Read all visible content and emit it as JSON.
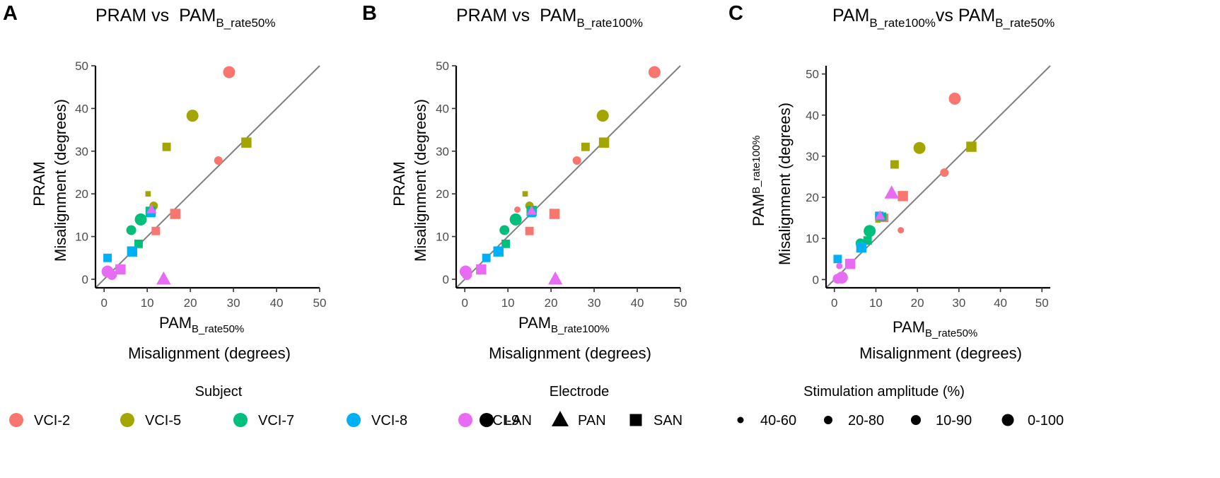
{
  "colors": {
    "VCI-2": "#F8766D",
    "VCI-5": "#A3A500",
    "VCI-7": "#00BF7D",
    "VCI-8": "#00B0F6",
    "VCI-9": "#E76BF3",
    "identity_line": "#808080"
  },
  "panels": [
    {
      "label": "A",
      "title_main": "PRAM vs  PAM",
      "title_sub": "B_rate50%"
    },
    {
      "label": "B",
      "title_main": "PRAM vs  PAM",
      "title_sub": "B_rate100%"
    },
    {
      "label": "C",
      "title_main": "PAM",
      "title_sub": "B_rate100%",
      "title_main2": "vs PAM",
      "title_sub2": "B_rate50%"
    }
  ],
  "legend": {
    "subject_title": "Subject",
    "electrode_title": "Electrode",
    "amplitude_title": "Stimulation amplitude (%)",
    "subjects": [
      "VCI-2",
      "VCI-5",
      "VCI-7",
      "VCI-8",
      "VCI-9"
    ],
    "electrodes": [
      "LAN",
      "PAN",
      "SAN"
    ],
    "amplitudes": [
      "40-60",
      "20-80",
      "10-90",
      "0-100"
    ]
  },
  "chart_data": [
    {
      "type": "scatter",
      "title": "PRAM vs  PAMB_rate50%",
      "xlabel_main": "PAM",
      "xlabel_sub": "B_rate50%",
      "xlabel_line2": "Misalignment (degrees)",
      "ylabel_main": "PRAM",
      "ylabel_line2": "Misalignment (degrees)",
      "xlim": [
        -2,
        50
      ],
      "ylim": [
        -2,
        50
      ],
      "xticks": [
        0,
        10,
        20,
        30,
        40,
        50
      ],
      "yticks": [
        0,
        10,
        20,
        30,
        40,
        50
      ],
      "identity_line": true,
      "grid": false,
      "points": [
        {
          "x": 29,
          "y": 48.5,
          "subject": "VCI-2",
          "electrode": "LAN",
          "amp": "0-100"
        },
        {
          "x": 26.5,
          "y": 27.8,
          "subject": "VCI-2",
          "electrode": "LAN",
          "amp": "20-80"
        },
        {
          "x": 16.5,
          "y": 15.3,
          "subject": "VCI-2",
          "electrode": "SAN",
          "amp": "0-100"
        },
        {
          "x": 12,
          "y": 11.3,
          "subject": "VCI-2",
          "electrode": "SAN",
          "amp": "10-90"
        },
        {
          "x": 20.5,
          "y": 38.3,
          "subject": "VCI-5",
          "electrode": "LAN",
          "amp": "0-100"
        },
        {
          "x": 33,
          "y": 32,
          "subject": "VCI-5",
          "electrode": "SAN",
          "amp": "0-100"
        },
        {
          "x": 14.5,
          "y": 31,
          "subject": "VCI-5",
          "electrode": "SAN",
          "amp": "10-90"
        },
        {
          "x": 10.2,
          "y": 20,
          "subject": "VCI-5",
          "electrode": "SAN",
          "amp": "40-60"
        },
        {
          "x": 11.5,
          "y": 17.2,
          "subject": "VCI-5",
          "electrode": "LAN",
          "amp": "20-80"
        },
        {
          "x": 10.8,
          "y": 15.8,
          "subject": "VCI-7",
          "electrode": "SAN",
          "amp": "0-100"
        },
        {
          "x": 8.5,
          "y": 14,
          "subject": "VCI-7",
          "electrode": "LAN",
          "amp": "0-100"
        },
        {
          "x": 6.3,
          "y": 11.5,
          "subject": "VCI-7",
          "electrode": "LAN",
          "amp": "10-90"
        },
        {
          "x": 8,
          "y": 8.3,
          "subject": "VCI-7",
          "electrode": "SAN",
          "amp": "10-90"
        },
        {
          "x": 10.8,
          "y": 15.5,
          "subject": "VCI-8",
          "electrode": "SAN",
          "amp": "10-90"
        },
        {
          "x": 6.5,
          "y": 6.5,
          "subject": "VCI-8",
          "electrode": "SAN",
          "amp": "0-100"
        },
        {
          "x": 0.8,
          "y": 5,
          "subject": "VCI-8",
          "electrode": "SAN",
          "amp": "10-90"
        },
        {
          "x": 13.8,
          "y": 0,
          "subject": "VCI-9",
          "electrode": "PAN",
          "amp": "0-100"
        },
        {
          "x": 11,
          "y": 16.3,
          "subject": "VCI-9",
          "electrode": "PAN",
          "amp": "20-80"
        },
        {
          "x": 3.8,
          "y": 2.3,
          "subject": "VCI-9",
          "electrode": "SAN",
          "amp": "0-100"
        },
        {
          "x": 0.8,
          "y": 1.8,
          "subject": "VCI-9",
          "electrode": "LAN",
          "amp": "0-100"
        },
        {
          "x": 1.8,
          "y": 1,
          "subject": "VCI-9",
          "electrode": "LAN",
          "amp": "10-90"
        }
      ]
    },
    {
      "type": "scatter",
      "title": "PRAM vs  PAMB_rate100%",
      "xlabel_main": "PAM",
      "xlabel_sub": "B_rate100%",
      "xlabel_line2": "Misalignment (degrees)",
      "ylabel_main": "PRAM",
      "ylabel_line2": "Misalignment (degrees)",
      "xlim": [
        -2,
        50
      ],
      "ylim": [
        -2,
        50
      ],
      "xticks": [
        0,
        10,
        20,
        30,
        40,
        50
      ],
      "yticks": [
        0,
        10,
        20,
        30,
        40,
        50
      ],
      "identity_line": true,
      "grid": false,
      "points": [
        {
          "x": 44,
          "y": 48.5,
          "subject": "VCI-2",
          "electrode": "LAN",
          "amp": "0-100"
        },
        {
          "x": 26,
          "y": 27.8,
          "subject": "VCI-2",
          "electrode": "LAN",
          "amp": "20-80"
        },
        {
          "x": 20.8,
          "y": 15.3,
          "subject": "VCI-2",
          "electrode": "SAN",
          "amp": "0-100"
        },
        {
          "x": 15,
          "y": 11.3,
          "subject": "VCI-2",
          "electrode": "SAN",
          "amp": "10-90"
        },
        {
          "x": 12.2,
          "y": 16.3,
          "subject": "VCI-2",
          "electrode": "LAN",
          "amp": "40-60"
        },
        {
          "x": 32,
          "y": 38.3,
          "subject": "VCI-5",
          "electrode": "LAN",
          "amp": "0-100"
        },
        {
          "x": 32.3,
          "y": 32,
          "subject": "VCI-5",
          "electrode": "SAN",
          "amp": "0-100"
        },
        {
          "x": 28,
          "y": 31,
          "subject": "VCI-5",
          "electrode": "SAN",
          "amp": "10-90"
        },
        {
          "x": 14,
          "y": 20,
          "subject": "VCI-5",
          "electrode": "SAN",
          "amp": "40-60"
        },
        {
          "x": 15,
          "y": 17.2,
          "subject": "VCI-5",
          "electrode": "LAN",
          "amp": "20-80"
        },
        {
          "x": 15.5,
          "y": 16,
          "subject": "VCI-7",
          "electrode": "SAN",
          "amp": "0-100"
        },
        {
          "x": 11.8,
          "y": 14,
          "subject": "VCI-7",
          "electrode": "LAN",
          "amp": "0-100"
        },
        {
          "x": 9.2,
          "y": 11.5,
          "subject": "VCI-7",
          "electrode": "LAN",
          "amp": "10-90"
        },
        {
          "x": 9.5,
          "y": 8.3,
          "subject": "VCI-7",
          "electrode": "SAN",
          "amp": "10-90"
        },
        {
          "x": 15.5,
          "y": 15.5,
          "subject": "VCI-8",
          "electrode": "SAN",
          "amp": "10-90"
        },
        {
          "x": 7.8,
          "y": 6.5,
          "subject": "VCI-8",
          "electrode": "SAN",
          "amp": "0-100"
        },
        {
          "x": 5,
          "y": 5,
          "subject": "VCI-8",
          "electrode": "SAN",
          "amp": "10-90"
        },
        {
          "x": 21,
          "y": 0,
          "subject": "VCI-9",
          "electrode": "PAN",
          "amp": "0-100"
        },
        {
          "x": 15.5,
          "y": 16,
          "subject": "VCI-9",
          "electrode": "PAN",
          "amp": "20-80"
        },
        {
          "x": 3.8,
          "y": 2.3,
          "subject": "VCI-9",
          "electrode": "SAN",
          "amp": "0-100"
        },
        {
          "x": 0.2,
          "y": 1.8,
          "subject": "VCI-9",
          "electrode": "LAN",
          "amp": "0-100"
        },
        {
          "x": 0.5,
          "y": 1,
          "subject": "VCI-9",
          "electrode": "LAN",
          "amp": "10-90"
        }
      ]
    },
    {
      "type": "scatter",
      "title": "PAMB_rate100%vs PAMB_rate50%",
      "xlabel_main": "PAM",
      "xlabel_sub": "B_rate50%",
      "xlabel_line2": "Misalignment (degrees)",
      "ylabel_main": "PAM",
      "ylabel_sub": "B_rate100%",
      "ylabel_line2": "Misalignment (degrees)",
      "xlim": [
        -2,
        52
      ],
      "ylim": [
        -2,
        52
      ],
      "xticks": [
        0,
        10,
        20,
        30,
        40,
        50
      ],
      "yticks": [
        0,
        10,
        20,
        30,
        40,
        50
      ],
      "identity_line": true,
      "grid": false,
      "points": [
        {
          "x": 29,
          "y": 44,
          "subject": "VCI-2",
          "electrode": "LAN",
          "amp": "0-100"
        },
        {
          "x": 26.5,
          "y": 26,
          "subject": "VCI-2",
          "electrode": "LAN",
          "amp": "20-80"
        },
        {
          "x": 16.5,
          "y": 20.3,
          "subject": "VCI-2",
          "electrode": "SAN",
          "amp": "0-100"
        },
        {
          "x": 12,
          "y": 15,
          "subject": "VCI-2",
          "electrode": "SAN",
          "amp": "10-90"
        },
        {
          "x": 16,
          "y": 12,
          "subject": "VCI-2",
          "electrode": "LAN",
          "amp": "40-60"
        },
        {
          "x": 20.5,
          "y": 32,
          "subject": "VCI-5",
          "electrode": "LAN",
          "amp": "0-100"
        },
        {
          "x": 33,
          "y": 32.3,
          "subject": "VCI-5",
          "electrode": "SAN",
          "amp": "0-100"
        },
        {
          "x": 14.5,
          "y": 28,
          "subject": "VCI-5",
          "electrode": "SAN",
          "amp": "10-90"
        },
        {
          "x": 10.5,
          "y": 14.5,
          "subject": "VCI-5",
          "electrode": "SAN",
          "amp": "40-60"
        },
        {
          "x": 11.5,
          "y": 15.3,
          "subject": "VCI-7",
          "electrode": "SAN",
          "amp": "10-90"
        },
        {
          "x": 8.5,
          "y": 11.8,
          "subject": "VCI-7",
          "electrode": "LAN",
          "amp": "0-100"
        },
        {
          "x": 8,
          "y": 9.5,
          "subject": "VCI-7",
          "electrode": "SAN",
          "amp": "10-90"
        },
        {
          "x": 6.3,
          "y": 8.8,
          "subject": "VCI-7",
          "electrode": "LAN",
          "amp": "10-90"
        },
        {
          "x": 10.8,
          "y": 15.5,
          "subject": "VCI-8",
          "electrode": "SAN",
          "amp": "10-90"
        },
        {
          "x": 6.5,
          "y": 7.8,
          "subject": "VCI-8",
          "electrode": "SAN",
          "amp": "0-100"
        },
        {
          "x": 0.8,
          "y": 5,
          "subject": "VCI-8",
          "electrode": "SAN",
          "amp": "10-90"
        },
        {
          "x": 13.8,
          "y": 21,
          "subject": "VCI-9",
          "electrode": "PAN",
          "amp": "0-100"
        },
        {
          "x": 11,
          "y": 15.5,
          "subject": "VCI-9",
          "electrode": "PAN",
          "amp": "20-80"
        },
        {
          "x": 3.8,
          "y": 3.8,
          "subject": "VCI-9",
          "electrode": "SAN",
          "amp": "0-100"
        },
        {
          "x": 1.8,
          "y": 0.5,
          "subject": "VCI-9",
          "electrode": "LAN",
          "amp": "0-100"
        },
        {
          "x": 0.8,
          "y": 0.2,
          "subject": "VCI-9",
          "electrode": "LAN",
          "amp": "10-90"
        },
        {
          "x": 1.2,
          "y": 3.3,
          "subject": "VCI-9",
          "electrode": "LAN",
          "amp": "40-60"
        }
      ]
    }
  ]
}
